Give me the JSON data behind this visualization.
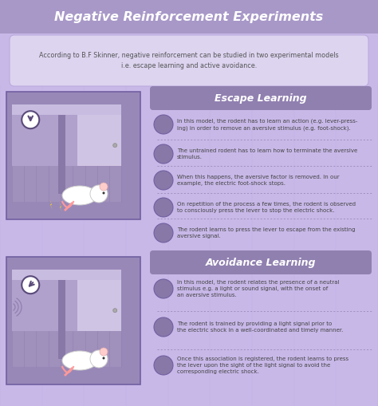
{
  "title": "Negative Reinforcement Experiments",
  "title_bg": "#a898c8",
  "bg_color": "#c8b8e8",
  "subtitle": "According to B.F Skinner, negative reinforcement can be studied in two experimental models\ni.e. escape learning and active avoidance.",
  "subtitle_box_color": "#ddd4f0",
  "escape_label": "Escape Learning",
  "avoidance_label": "Avoidance Learning",
  "section_label_bg": "#9080b0",
  "escape_points": [
    "In this model, the rodent has to learn an action (e.g. lever-press-\ning) in order to remove an aversive stimulus (e.g. foot-shock).",
    "The untrained rodent has to learn how to terminate the aversive\nstimulus.",
    "When this happens, the aversive factor is removed. In our\nexample, the electric foot-shock stops.",
    "On repetition of the process a few times, the rodent is observed\nto consciously press the lever to stop the electric shock.",
    "The rodent learns to press the lever to escape from the existing\naversive signal."
  ],
  "avoidance_points": [
    "In this model, the rodent relates the presence of a neutral\nstimulus e.g. a light or sound signal, with the onset of\nan aversive stimulus.",
    "The rodent is trained by providing a light signal prior to\nthe electric shock in a well-coordinated and timely manner.",
    "Once this association is registered, the rodent learns to press\nthe lever upon the sight of the light signal to avoid the\ncorresponding electric shock."
  ],
  "text_color": "#444444",
  "dark_purple": "#5a4a7a",
  "icon_bg": "#8878a8",
  "maze_outer": "#9888b8",
  "maze_light": "#c8bcdc",
  "maze_back": "#b0a0cc",
  "maze_floor": "#a090bc",
  "maze_wall_dark": "#8878a8",
  "maze_divider": "#9080b0"
}
